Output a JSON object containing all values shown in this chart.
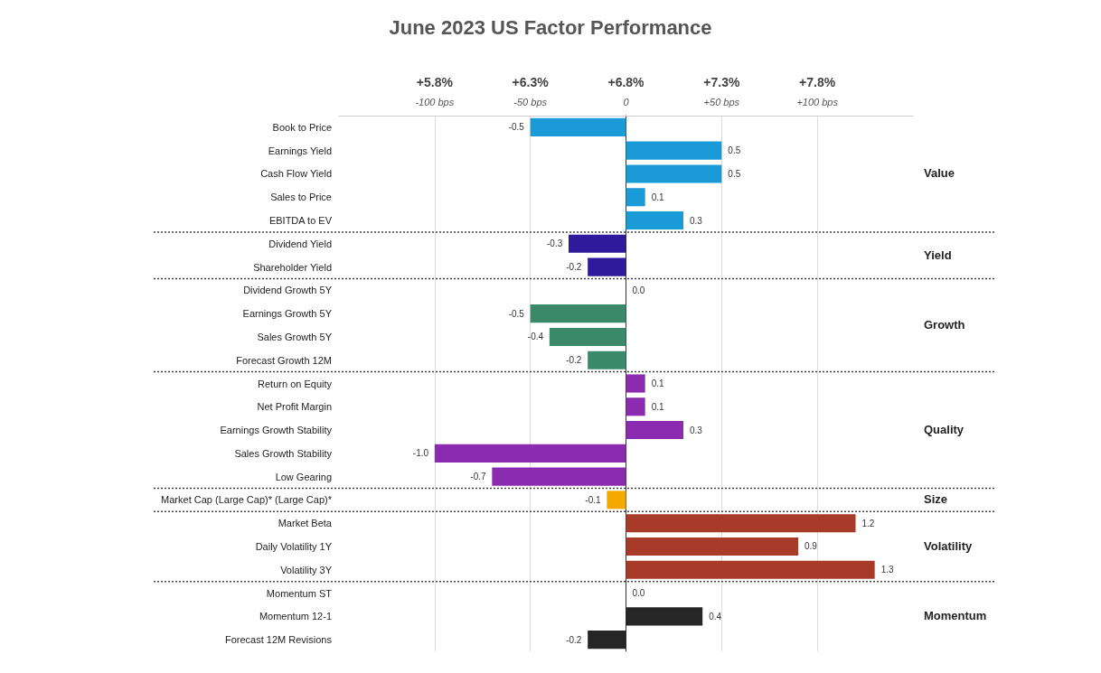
{
  "chart_data": {
    "type": "bar",
    "orientation": "horizontal",
    "title": "June 2023 US Factor Performance",
    "categories": [
      "Book to Price",
      "Earnings Yield",
      "Cash Flow Yield",
      "Sales to Price",
      "EBITDA to EV",
      "Dividend Yield",
      "Shareholder Yield",
      "Dividend Growth 5Y",
      "Earnings Growth 5Y",
      "Sales Growth 5Y",
      "Forecast Growth 12M",
      "Return on Equity",
      "Net Profit Margin",
      "Earnings Growth Stability",
      "Sales Growth Stability",
      "Low Gearing",
      "Market Cap (Large Cap)* (Large Cap)*",
      "Market Beta",
      "Daily Volatility 1Y",
      "Volatility 3Y",
      "Momentum ST",
      "Momentum 12-1",
      "Forecast 12M Revisions"
    ],
    "series": [
      {
        "name": "Value",
        "color": "#1a9bd7",
        "values": [
          -50,
          50,
          50,
          10,
          30,
          null,
          null,
          null,
          null,
          null,
          null,
          null,
          null,
          null,
          null,
          null,
          null,
          null,
          null,
          null,
          null,
          null,
          null
        ]
      },
      {
        "name": "Yield",
        "color": "#2e1a9a",
        "values": [
          null,
          null,
          null,
          null,
          null,
          -30,
          -20,
          null,
          null,
          null,
          null,
          null,
          null,
          null,
          null,
          null,
          null,
          null,
          null,
          null,
          null,
          null,
          null
        ]
      },
      {
        "name": "Growth",
        "color": "#3a8a6a",
        "values": [
          null,
          null,
          null,
          null,
          null,
          null,
          null,
          0,
          -50,
          -40,
          -20,
          null,
          null,
          null,
          null,
          null,
          null,
          null,
          null,
          null,
          null,
          null,
          null
        ]
      },
      {
        "name": "Quality",
        "color": "#8a2bb0",
        "values": [
          null,
          null,
          null,
          null,
          null,
          null,
          null,
          null,
          null,
          null,
          null,
          10,
          10,
          30,
          -100,
          -70,
          null,
          null,
          null,
          null,
          null,
          null,
          null
        ]
      },
      {
        "name": "Size",
        "color": "#f5a800",
        "values": [
          null,
          null,
          null,
          null,
          null,
          null,
          null,
          null,
          null,
          null,
          null,
          null,
          null,
          null,
          null,
          null,
          -10,
          null,
          null,
          null,
          null,
          null,
          null
        ]
      },
      {
        "name": "Volatility",
        "color": "#a83a2a",
        "values": [
          null,
          null,
          null,
          null,
          null,
          null,
          null,
          null,
          null,
          null,
          null,
          null,
          null,
          null,
          null,
          null,
          null,
          120,
          90,
          130,
          null,
          null,
          null
        ]
      },
      {
        "name": "Momentum",
        "color": "#262626",
        "values": [
          null,
          null,
          null,
          null,
          null,
          null,
          null,
          null,
          null,
          null,
          null,
          null,
          null,
          null,
          null,
          null,
          null,
          null,
          null,
          null,
          0,
          40,
          -20
        ]
      }
    ],
    "annotations": [
      {
        "text": "-0.5",
        "x": -50,
        "y": "Book to Price"
      },
      {
        "text": "0.5",
        "x": 50,
        "y": "Earnings Yield"
      },
      {
        "text": "0.5",
        "x": 50,
        "y": "Cash Flow Yield"
      },
      {
        "text": "0.1",
        "x": 10,
        "y": "Sales to Price"
      },
      {
        "text": "0.3",
        "x": 30,
        "y": "EBITDA to EV"
      },
      {
        "text": "-0.3",
        "x": -30,
        "y": "Dividend Yield"
      },
      {
        "text": "-0.2",
        "x": -20,
        "y": "Shareholder Yield"
      },
      {
        "text": "0.0",
        "x": 0,
        "y": "Dividend Growth 5Y"
      },
      {
        "text": "-0.5",
        "x": -50,
        "y": "Earnings Growth 5Y"
      },
      {
        "text": "-0.4",
        "x": -40,
        "y": "Sales Growth 5Y"
      },
      {
        "text": "-0.2",
        "x": -20,
        "y": "Forecast Growth 12M"
      },
      {
        "text": "0.1",
        "x": 10,
        "y": "Return on Equity"
      },
      {
        "text": "0.1",
        "x": 10,
        "y": "Net Profit Margin"
      },
      {
        "text": "0.3",
        "x": 30,
        "y": "Earnings Growth Stability"
      },
      {
        "text": "-1.0",
        "x": -100,
        "y": "Sales Growth Stability"
      },
      {
        "text": "-0.7",
        "x": -70,
        "y": "Low Gearing"
      },
      {
        "text": "-0.1",
        "x": -10,
        "y": "Market Cap (Large Cap)* (Large Cap)*"
      },
      {
        "text": "1.2",
        "x": 120,
        "y": "Market Beta"
      },
      {
        "text": "0.9",
        "x": 90,
        "y": "Daily Volatility 1Y"
      },
      {
        "text": "1.3",
        "x": 130,
        "y": "Volatility 3Y"
      },
      {
        "text": "0.0",
        "x": 0,
        "y": "Momentum ST"
      },
      {
        "text": "0.4",
        "x": 40,
        "y": "Momentum 12-1"
      },
      {
        "text": "-0.2",
        "x": -20,
        "y": "Forecast 12M Revisions"
      }
    ],
    "xlim": [
      -150,
      150
    ],
    "xticks": [
      {
        "value": -100,
        "label": "-100 bps"
      },
      {
        "value": -50,
        "label": "-50 bps"
      },
      0,
      {
        "value": 50,
        "label": "+50 bps"
      },
      {
        "value": 100,
        "label": "+100 bps"
      }
    ],
    "x2lim": [
      5.3,
      8.3
    ],
    "x2ticks": [
      {
        "value": 5.8,
        "label": "+5.8%"
      },
      {
        "value": 6.3,
        "label": "+6.3%"
      },
      {
        "value": 6.8,
        "label": "+6.8%"
      },
      {
        "value": 7.3,
        "label": "+7.3%"
      },
      {
        "value": 7.8,
        "label": "+7.8%"
      }
    ],
    "grid": "x",
    "legend": false
  }
}
